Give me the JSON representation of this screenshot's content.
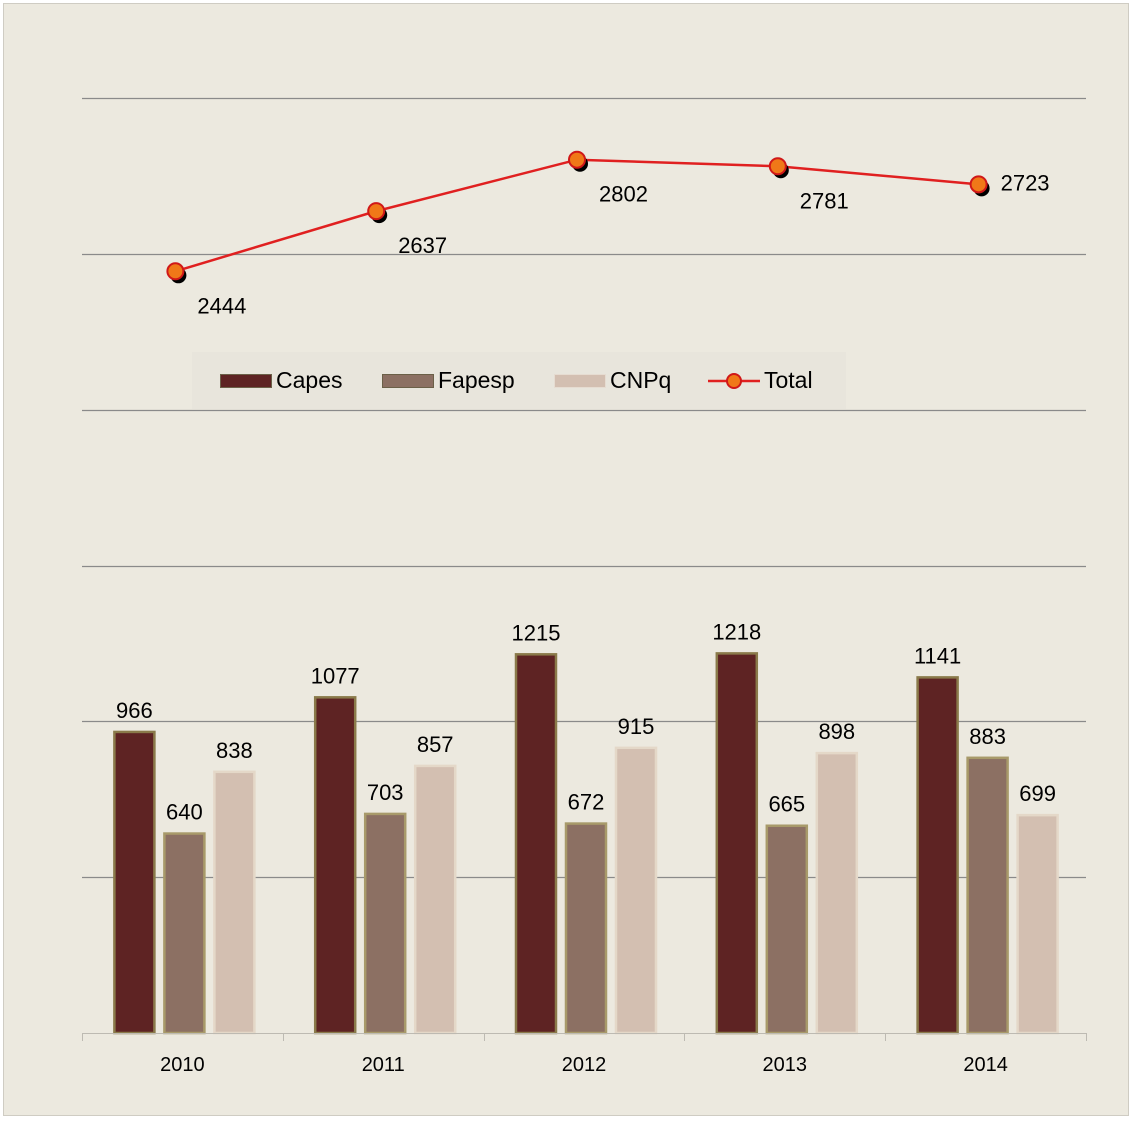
{
  "chart_data": {
    "type": "bar",
    "categories": [
      "2010",
      "2011",
      "2012",
      "2013",
      "2014"
    ],
    "series": [
      {
        "name": "Capes",
        "kind": "bar",
        "color": "#5e2323",
        "values": [
          966,
          1077,
          1215,
          1218,
          1141
        ]
      },
      {
        "name": "Fapesp",
        "kind": "bar",
        "color": "#8c7063",
        "values": [
          640,
          703,
          672,
          665,
          883
        ]
      },
      {
        "name": "CNPq",
        "kind": "bar",
        "color": "#d3bfb1",
        "values": [
          838,
          857,
          915,
          898,
          699
        ]
      },
      {
        "name": "Total",
        "kind": "line",
        "color": "#e02020",
        "marker_color": "#f07818",
        "values": [
          2444,
          2637,
          2802,
          2781,
          2723
        ]
      }
    ],
    "ylim": [
      0,
      3000
    ],
    "grid": true,
    "legend": "inside-middle",
    "title": "",
    "xlabel": "",
    "ylabel": ""
  }
}
